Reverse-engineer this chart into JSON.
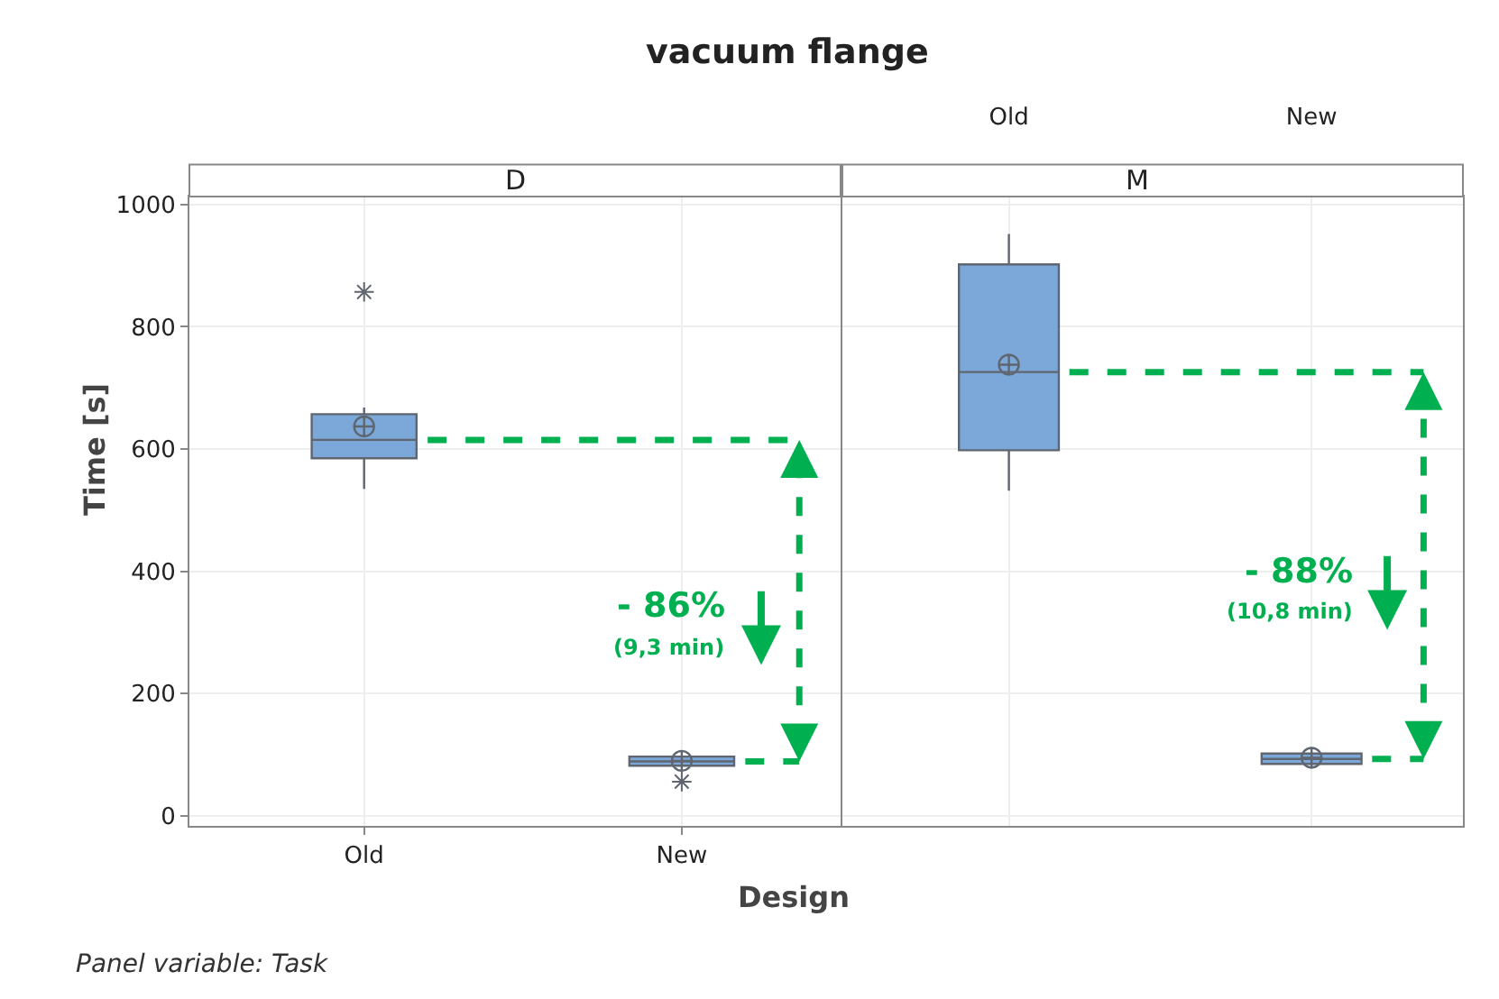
{
  "chart_data": [
    {
      "type": "box",
      "title": "vacuum flange",
      "subtitle": "D",
      "xlabel": "Design",
      "ylabel": "Time [s]",
      "categories": [
        "Old",
        "New"
      ],
      "series": [
        {
          "color": "#7ba7d9",
          "boxes": [
            {
              "low": 535,
              "q1": 585,
              "median": 615,
              "q3": 657,
              "high": 668,
              "mean": 637,
              "outliers": [
                857
              ]
            },
            {
              "low": 82,
              "q1": 82,
              "median": 89,
              "q3": 97,
              "high": 97,
              "mean": 90,
              "outliers": [
                56
              ]
            }
          ]
        }
      ],
      "ylim": [
        -16,
        1013
      ],
      "yticks": [
        0,
        200,
        400,
        600,
        800,
        1000
      ],
      "grid": true,
      "annotations": [
        "- 86%",
        "(9,3 min)",
        "Panel variable: Task"
      ]
    },
    {
      "type": "box",
      "subtitle": "M",
      "categories": [
        "Old",
        "New"
      ],
      "series": [
        {
          "color": "#7ba7d9",
          "boxes": [
            {
              "low": 532,
              "q1": 598,
              "median": 726,
              "q3": 902,
              "high": 952,
              "mean": 738
            },
            {
              "low": 85,
              "q1": 85,
              "median": 93,
              "q3": 102,
              "high": 102,
              "mean": 95
            }
          ]
        }
      ],
      "ylim": [
        -16,
        1013
      ],
      "yticks": [
        0,
        200,
        400,
        600,
        800,
        1000
      ],
      "grid": true,
      "tick_labels": "x",
      "annotations": [
        "- 88%",
        "(10,8 min)"
      ]
    }
  ]
}
